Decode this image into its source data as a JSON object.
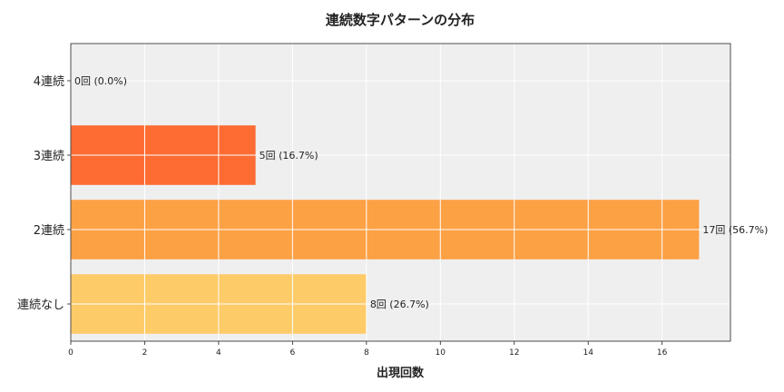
{
  "chart_data": {
    "type": "bar",
    "orientation": "horizontal",
    "title": "連続数字パターンの分布",
    "xlabel": "出現回数",
    "ylabel": "",
    "categories": [
      "連続なし",
      "2連続",
      "3連続",
      "4連続"
    ],
    "values": [
      8,
      17,
      5,
      0
    ],
    "data_labels": [
      "8回 (26.7%)",
      "17回 (56.7%)",
      "5回 (16.7%)",
      "0回 (0.0%)"
    ],
    "colors": [
      "#fecb69",
      "#fda145",
      "#fe6b33",
      "#f14232"
    ],
    "xlim": [
      0,
      17.85
    ],
    "xticks": [
      "0",
      "2",
      "4",
      "6",
      "8",
      "10",
      "12",
      "14",
      "16"
    ],
    "grid": true,
    "background": "#efefef"
  }
}
